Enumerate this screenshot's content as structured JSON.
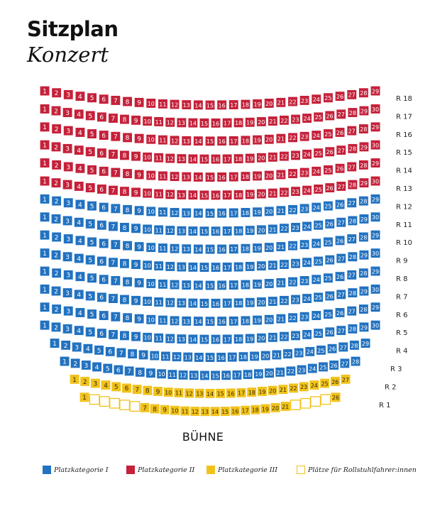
{
  "title": "Sitzplan",
  "subtitle": "Konzert",
  "stage_label": "BÜHNE",
  "colors": {
    "kategorie_1": "#2272c0",
    "kategorie_2": "#c5213a",
    "kategorie_3": "#f1c21b",
    "rollstuhl_border": "#f1c21b",
    "seat_text_light": "#ffffff",
    "seat_text_dark": "#3a2a00"
  },
  "legend": [
    {
      "label": "Platzkategorie I",
      "category": 1
    },
    {
      "label": "Platzkategorie II",
      "category": 2
    },
    {
      "label": "Platzkategorie III",
      "category": 3
    },
    {
      "label": "Plätze für Rollstuhlfahrer:innen",
      "category": "wheelchair"
    }
  ],
  "rows": [
    {
      "label": "R 18",
      "seats": 29,
      "category": 2
    },
    {
      "label": "R 17",
      "seats": 30,
      "category": 2
    },
    {
      "label": "R 16",
      "seats": 29,
      "category": 2
    },
    {
      "label": "R 15",
      "seats": 30,
      "category": 2
    },
    {
      "label": "R 14",
      "seats": 29,
      "category": 2
    },
    {
      "label": "R 13",
      "seats": 30,
      "category": 2
    },
    {
      "label": "R 12",
      "seats": 29,
      "category": 1
    },
    {
      "label": "R 11",
      "seats": 30,
      "category": 1
    },
    {
      "label": "R 10",
      "seats": 29,
      "category": 1
    },
    {
      "label": "R 9",
      "seats": 30,
      "category": 1
    },
    {
      "label": "R 8",
      "seats": 29,
      "category": 1
    },
    {
      "label": "R 7",
      "seats": 30,
      "category": 1
    },
    {
      "label": "R 6",
      "seats": 29,
      "category": 1
    },
    {
      "label": "R 5",
      "seats": 30,
      "category": 1
    },
    {
      "label": "R 4",
      "seats": 29,
      "category": 1
    },
    {
      "label": "R 3",
      "seats": 28,
      "category": 1
    },
    {
      "label": "R 2",
      "seats": 27,
      "category": 3
    },
    {
      "label": "R 1",
      "seats": 26,
      "category": 3,
      "wheelchair_seats": [
        2,
        3,
        4,
        5,
        6,
        22,
        23,
        24,
        25
      ]
    }
  ]
}
